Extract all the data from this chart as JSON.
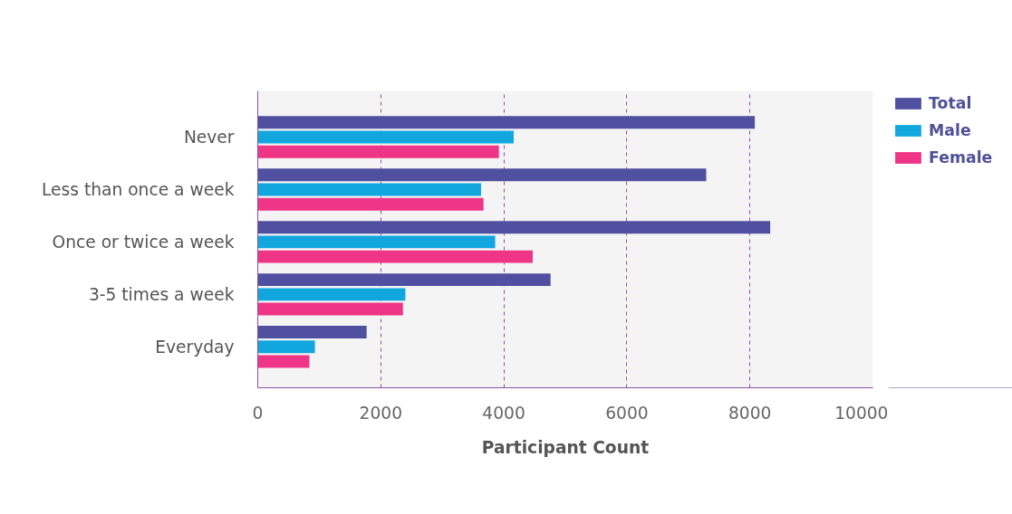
{
  "chart_data": {
    "type": "bar",
    "orientation": "horizontal",
    "xlabel": "Participant Count",
    "categories": [
      "Never",
      "Less than once a week",
      "Once or twice a week",
      "3-5 times a week",
      "Everyday"
    ],
    "series": [
      {
        "name": "Total",
        "color": "#5050a0",
        "values": [
          8080,
          7290,
          8330,
          4760,
          1770
        ]
      },
      {
        "name": "Male",
        "color": "#12a6de",
        "values": [
          4160,
          3630,
          3860,
          2400,
          930
        ]
      },
      {
        "name": "Female",
        "color": "#ef3585",
        "values": [
          3920,
          3670,
          4470,
          2360,
          840
        ]
      }
    ],
    "xlim": [
      0,
      10000
    ],
    "xticks": [
      0,
      2000,
      4000,
      6000,
      8000,
      10000
    ],
    "grid": "x",
    "legend": "top right"
  }
}
